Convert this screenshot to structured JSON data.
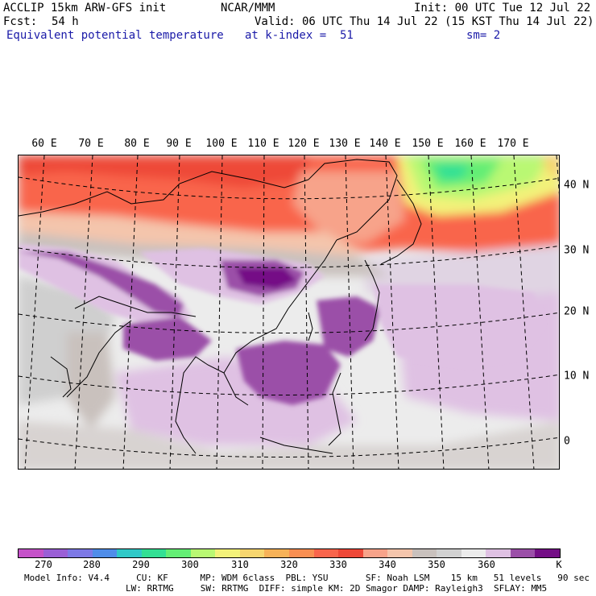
{
  "header": {
    "model": "ACCLIP 15km ARW-GFS init",
    "center": "NCAR/MMM",
    "init": "Init: 00 UTC Tue 12 Jul 22",
    "fcst_label": "Fcst:",
    "fcst_value": "54 h",
    "valid": "Valid: 06 UTC Thu 14 Jul 22 (15 KST Thu 14 Jul 22)",
    "field": "Equivalent potential temperature",
    "level": "at k-index =  51",
    "smoothing": "sm= 2"
  },
  "map": {
    "lon_labels": [
      "60 E",
      "70 E",
      "80 E",
      "90 E",
      "100 E",
      "110 E",
      "120 E",
      "130 E",
      "140 E",
      "150 E",
      "160 E",
      "170 E"
    ],
    "lat_labels": [
      "40 N",
      "30 N",
      "20 N",
      "10 N",
      "0"
    ]
  },
  "colorbar": {
    "colors": [
      "#c552c9",
      "#9a5fd6",
      "#7d79e6",
      "#4f8de9",
      "#30c9c7",
      "#33e094",
      "#64ee75",
      "#b9f873",
      "#f3f27a",
      "#f7d66f",
      "#f7b258",
      "#f98f52",
      "#f9654c",
      "#ee4838",
      "#f7a38a",
      "#f4c5ac",
      "#c9c1bd",
      "#d1d1d1",
      "#ececec",
      "#dfc1e3",
      "#9b4fa8",
      "#740e86"
    ],
    "ticks": [
      "270",
      "280",
      "290",
      "300",
      "310",
      "320",
      "330",
      "340",
      "350",
      "360"
    ],
    "unit": "K"
  },
  "footer": {
    "line1": "Model Info: V4.4     CU: KF      MP: WDM 6class  PBL: YSU       SF: Noah LSM    15 km   51 levels   90 sec",
    "line2": "LW: RRTMG     SW: RRTMG  DIFF: simple KM: 2D Smagor DAMP: Rayleigh3  SFLAY: MM5"
  }
}
